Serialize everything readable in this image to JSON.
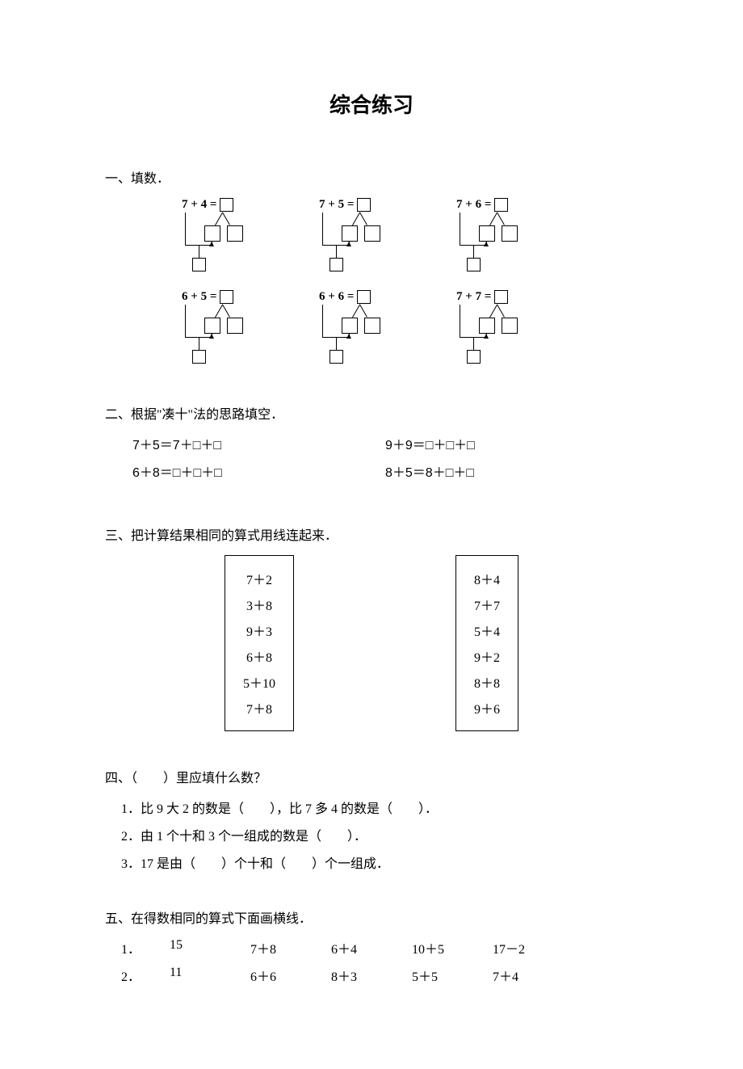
{
  "title": "综合练习",
  "sections": {
    "s1": {
      "head": "一、填数．",
      "rows": [
        [
          {
            "a": "7",
            "op": "+",
            "b": "4",
            "eq": "="
          },
          {
            "a": "7",
            "op": "+",
            "b": "5",
            "eq": "="
          },
          {
            "a": "7",
            "op": "+",
            "b": "6",
            "eq": "="
          }
        ],
        [
          {
            "a": "6",
            "op": "+",
            "b": "5",
            "eq": "="
          },
          {
            "a": "6",
            "op": "+",
            "b": "6",
            "eq": "="
          },
          {
            "a": "7",
            "op": "+",
            "b": "7",
            "eq": "="
          }
        ]
      ]
    },
    "s2": {
      "head": "二、根据\"凑十\"法的思路填空．",
      "items": [
        "7＋5＝7＋□＋□",
        "9＋9＝□＋□＋□",
        "6＋8＝□＋□＋□",
        "8＋5＝8＋□＋□"
      ]
    },
    "s3": {
      "head": "三、把计算结果相同的算式用线连起来．",
      "left": [
        "7＋2",
        "3＋8",
        "9＋3",
        "6＋8",
        "5＋10",
        "7＋8"
      ],
      "right": [
        "8＋4",
        "7＋7",
        "5＋4",
        "9＋2",
        "8＋8",
        "9＋6"
      ]
    },
    "s4": {
      "head": "四、（　　）里应填什么数？",
      "items": [
        "1．比 9 大 2 的数是（　　），比 7 多 4 的数是（　　）．",
        "2．由 1 个十和 3 个一组成的数是（　　）．",
        "3．17 是由（　　）个十和（　　）个一组成．"
      ]
    },
    "s5": {
      "head": "五、在得数相同的算式下面画横线．",
      "rows": [
        {
          "n": "1．",
          "t": "15",
          "c": [
            "7＋8",
            "6＋4",
            "10＋5",
            "17－2"
          ]
        },
        {
          "n": "2．",
          "t": "11",
          "c": [
            "6＋6",
            "8＋3",
            "5＋5",
            "7＋4"
          ]
        }
      ]
    }
  },
  "style": {
    "page_bg": "#ffffff",
    "text_color": "#000000",
    "title_fontsize": 26,
    "body_fontsize": 16
  }
}
